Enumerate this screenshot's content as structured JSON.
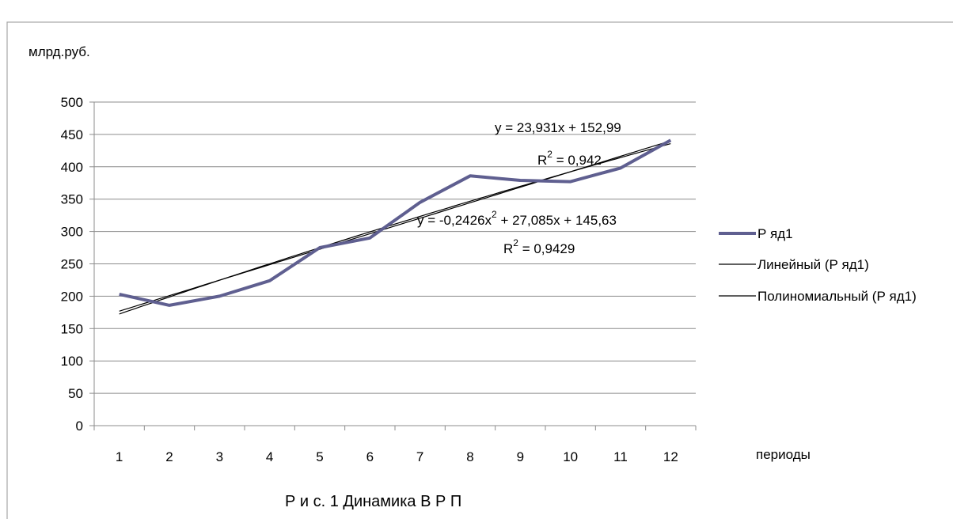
{
  "chart_data": {
    "type": "line",
    "title": "",
    "caption": "Р и с. 1 Динамика В Р П",
    "ylabel": "млрд.руб.",
    "xlabel": "периоды",
    "ylim": [
      0,
      500
    ],
    "y_ticks": [
      0,
      50,
      100,
      150,
      200,
      250,
      300,
      350,
      400,
      450,
      500
    ],
    "categories": [
      "1",
      "2",
      "3",
      "4",
      "5",
      "6",
      "7",
      "8",
      "9",
      "10",
      "11",
      "12"
    ],
    "grid": true,
    "legend_position": "right",
    "series": [
      {
        "name": "Р яд1",
        "color": "#5f5f90",
        "values": [
          203,
          186,
          200,
          224,
          275,
          290,
          345,
          386,
          379,
          377,
          398,
          441
        ]
      }
    ],
    "trendlines": [
      {
        "name": "Линейный (Р яд1)",
        "kind": "linear",
        "color": "#000000",
        "coefficients": [
          152.99,
          23.931
        ],
        "equation": "y = 23,931x + 152,99",
        "r_squared": "R",
        "r_value": " = 0,942"
      },
      {
        "name": "Полиномиальный (Р яд1)",
        "kind": "polynomial",
        "color": "#000000",
        "coefficients": [
          145.63,
          27.085,
          -0.2426
        ],
        "equation_a": "y = -0,2426x",
        "equation_b": " + 27,085x + 145,63",
        "r_squared": "R",
        "r_value": " = 0,9429"
      }
    ],
    "superscript": "2"
  }
}
